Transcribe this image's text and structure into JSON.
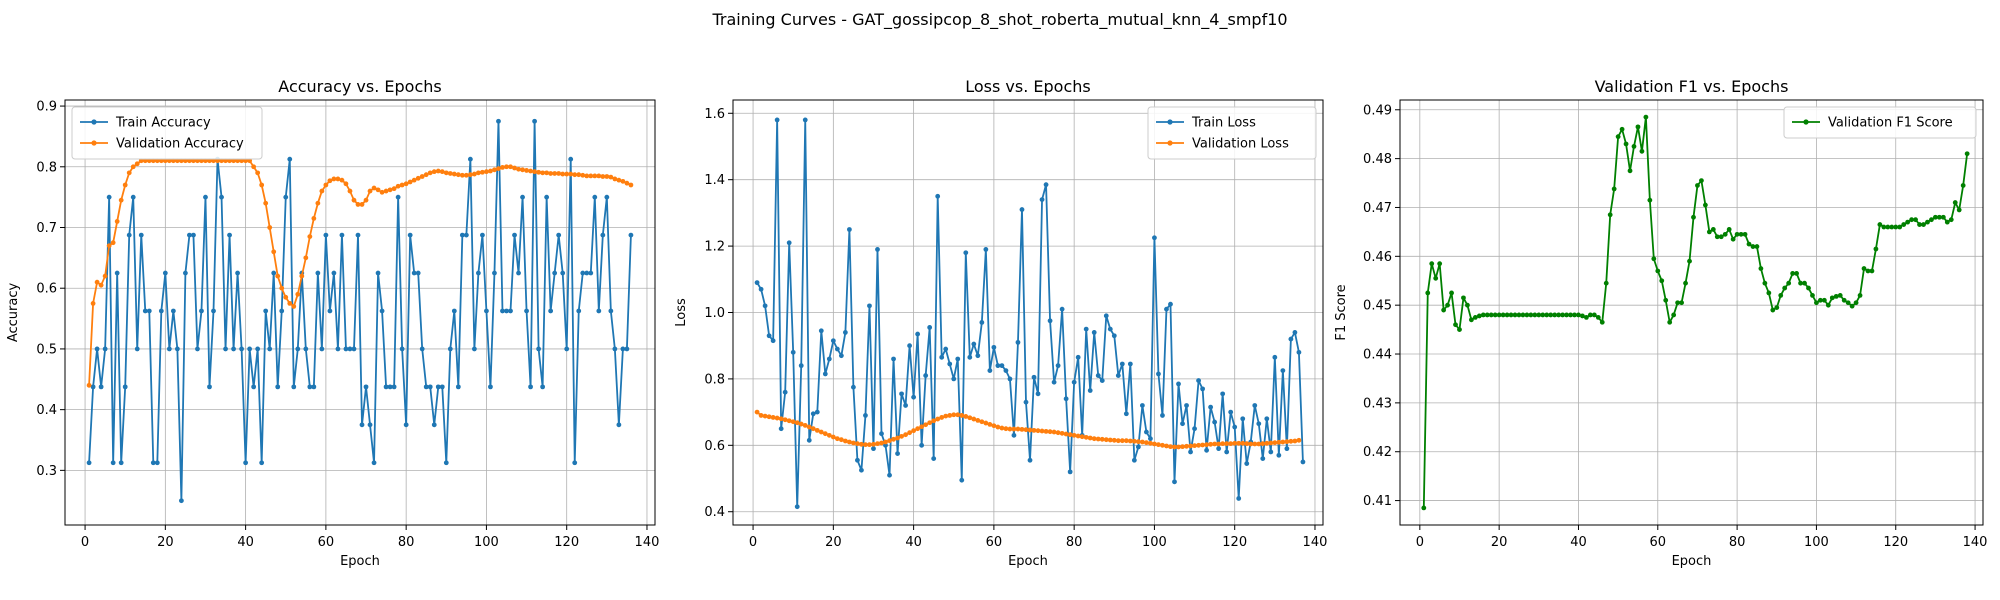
{
  "figure": {
    "title": "Training Curves - GAT_gossipcop_8_shot_roberta_mutual_knn_4_smpf10"
  },
  "colors": {
    "train": "#1f77b4",
    "val": "#ff7f0e",
    "f1": "#008000",
    "grid": "#b0b0b0"
  },
  "chart_data": [
    {
      "type": "line",
      "title": "Accuracy vs. Epochs",
      "xlabel": "Epoch",
      "ylabel": "Accuracy",
      "xlim": [
        -5,
        142
      ],
      "ylim": [
        0.21,
        0.91
      ],
      "xticks": [
        0,
        20,
        40,
        60,
        80,
        100,
        120,
        140
      ],
      "yticks": [
        0.3,
        0.4,
        0.5,
        0.6,
        0.7,
        0.8,
        0.9
      ],
      "ytick_labels": [
        "0.3",
        "0.4",
        "0.5",
        "0.6",
        "0.7",
        "0.8",
        "0.9"
      ],
      "grid": true,
      "legend": "upper left",
      "series": [
        {
          "name": "Train Accuracy",
          "color": "#1f77b4",
          "values": [
            0.3125,
            0.4375,
            0.5,
            0.4375,
            0.5,
            0.75,
            0.3125,
            0.625,
            0.3125,
            0.4375,
            0.6875,
            0.75,
            0.5,
            0.6875,
            0.5625,
            0.5625,
            0.3125,
            0.3125,
            0.5625,
            0.625,
            0.5,
            0.5625,
            0.5,
            0.25,
            0.625,
            0.6875,
            0.6875,
            0.5,
            0.5625,
            0.75,
            0.4375,
            0.5625,
            0.8125,
            0.75,
            0.5,
            0.6875,
            0.5,
            0.625,
            0.5,
            0.3125,
            0.5,
            0.4375,
            0.5,
            0.3125,
            0.5625,
            0.5,
            0.625,
            0.4375,
            0.5625,
            0.75,
            0.8125,
            0.4375,
            0.5,
            0.625,
            0.5,
            0.4375,
            0.4375,
            0.625,
            0.5,
            0.6875,
            0.5625,
            0.625,
            0.5,
            0.6875,
            0.5,
            0.5,
            0.5,
            0.6875,
            0.375,
            0.4375,
            0.375,
            0.3125,
            0.625,
            0.5625,
            0.4375,
            0.4375,
            0.4375,
            0.75,
            0.5,
            0.375,
            0.6875,
            0.625,
            0.625,
            0.5,
            0.4375,
            0.4375,
            0.375,
            0.4375,
            0.4375,
            0.3125,
            0.5,
            0.5625,
            0.4375,
            0.6875,
            0.6875,
            0.8125,
            0.5,
            0.625,
            0.6875,
            0.5625,
            0.4375,
            0.625,
            0.875,
            0.5625,
            0.5625,
            0.5625,
            0.6875,
            0.625,
            0.75,
            0.5625,
            0.4375,
            0.875,
            0.5,
            0.4375,
            0.75,
            0.5625,
            0.625,
            0.6875,
            0.625,
            0.5,
            0.8125,
            0.3125,
            0.5625,
            0.625,
            0.625,
            0.625,
            0.75,
            0.5625,
            0.6875,
            0.75,
            0.5625,
            0.5,
            0.375,
            0.5,
            0.5,
            0.6875
          ]
        },
        {
          "name": "Validation Accuracy",
          "color": "#ff7f0e",
          "values": [
            0.44,
            0.575,
            0.61,
            0.605,
            0.62,
            0.67,
            0.675,
            0.71,
            0.745,
            0.77,
            0.79,
            0.8,
            0.805,
            0.81,
            0.81,
            0.81,
            0.81,
            0.81,
            0.81,
            0.81,
            0.81,
            0.81,
            0.81,
            0.81,
            0.81,
            0.81,
            0.81,
            0.81,
            0.81,
            0.81,
            0.81,
            0.81,
            0.81,
            0.81,
            0.81,
            0.81,
            0.81,
            0.81,
            0.81,
            0.81,
            0.81,
            0.8,
            0.79,
            0.77,
            0.74,
            0.7,
            0.66,
            0.62,
            0.6,
            0.585,
            0.575,
            0.57,
            0.59,
            0.62,
            0.65,
            0.685,
            0.715,
            0.74,
            0.76,
            0.77,
            0.777,
            0.78,
            0.78,
            0.778,
            0.772,
            0.76,
            0.745,
            0.738,
            0.738,
            0.745,
            0.76,
            0.765,
            0.762,
            0.758,
            0.76,
            0.762,
            0.764,
            0.768,
            0.77,
            0.772,
            0.775,
            0.778,
            0.781,
            0.784,
            0.787,
            0.79,
            0.792,
            0.793,
            0.792,
            0.79,
            0.789,
            0.788,
            0.787,
            0.786,
            0.786,
            0.787,
            0.788,
            0.79,
            0.791,
            0.792,
            0.793,
            0.795,
            0.797,
            0.799,
            0.8,
            0.8,
            0.798,
            0.796,
            0.795,
            0.794,
            0.793,
            0.792,
            0.791,
            0.79,
            0.79,
            0.789,
            0.789,
            0.789,
            0.788,
            0.788,
            0.788,
            0.787,
            0.787,
            0.786,
            0.785,
            0.785,
            0.785,
            0.785,
            0.784,
            0.784,
            0.783,
            0.78,
            0.778,
            0.776,
            0.773,
            0.77
          ]
        }
      ]
    },
    {
      "type": "line",
      "title": "Loss vs. Epochs",
      "xlabel": "Epoch",
      "ylabel": "Loss",
      "xlim": [
        -5,
        142
      ],
      "ylim": [
        0.36,
        1.64
      ],
      "xticks": [
        0,
        20,
        40,
        60,
        80,
        100,
        120,
        140
      ],
      "yticks": [
        0.4,
        0.6,
        0.8,
        1.0,
        1.2,
        1.4,
        1.6
      ],
      "ytick_labels": [
        "0.4",
        "0.6",
        "0.8",
        "1.0",
        "1.2",
        "1.4",
        "1.6"
      ],
      "grid": true,
      "legend": "upper right",
      "series": [
        {
          "name": "Train Loss",
          "color": "#1f77b4",
          "values": [
            1.09,
            1.07,
            1.02,
            0.93,
            0.915,
            1.58,
            0.65,
            0.76,
            1.21,
            0.88,
            0.415,
            0.84,
            1.58,
            0.615,
            0.695,
            0.7,
            0.945,
            0.815,
            0.86,
            0.915,
            0.89,
            0.87,
            0.94,
            1.25,
            0.775,
            0.555,
            0.525,
            0.69,
            1.02,
            0.59,
            1.19,
            0.635,
            0.6,
            0.51,
            0.86,
            0.575,
            0.755,
            0.72,
            0.9,
            0.745,
            0.935,
            0.6,
            0.81,
            0.955,
            0.56,
            1.35,
            0.865,
            0.89,
            0.845,
            0.8,
            0.86,
            0.495,
            1.18,
            0.865,
            0.905,
            0.87,
            0.97,
            1.19,
            0.825,
            0.895,
            0.84,
            0.84,
            0.825,
            0.8,
            0.63,
            0.91,
            1.31,
            0.73,
            0.555,
            0.805,
            0.755,
            1.34,
            1.385,
            0.975,
            0.79,
            0.84,
            1.01,
            0.74,
            0.52,
            0.79,
            0.865,
            0.63,
            0.95,
            0.765,
            0.94,
            0.81,
            0.795,
            0.99,
            0.95,
            0.93,
            0.81,
            0.845,
            0.695,
            0.845,
            0.555,
            0.595,
            0.72,
            0.64,
            0.62,
            1.225,
            0.815,
            0.69,
            1.01,
            1.025,
            0.49,
            0.785,
            0.665,
            0.72,
            0.58,
            0.65,
            0.795,
            0.77,
            0.585,
            0.715,
            0.67,
            0.59,
            0.755,
            0.58,
            0.7,
            0.655,
            0.44,
            0.68,
            0.545,
            0.61,
            0.72,
            0.665,
            0.56,
            0.68,
            0.58,
            0.865,
            0.57,
            0.825,
            0.59,
            0.92,
            0.94,
            0.88,
            0.55
          ]
        },
        {
          "name": "Validation Loss",
          "color": "#ff7f0e",
          "values": [
            0.7,
            0.69,
            0.688,
            0.686,
            0.684,
            0.682,
            0.68,
            0.677,
            0.674,
            0.671,
            0.668,
            0.664,
            0.66,
            0.655,
            0.65,
            0.645,
            0.64,
            0.635,
            0.63,
            0.625,
            0.62,
            0.617,
            0.613,
            0.61,
            0.607,
            0.605,
            0.603,
            0.602,
            0.602,
            0.603,
            0.605,
            0.607,
            0.61,
            0.614,
            0.618,
            0.622,
            0.627,
            0.632,
            0.638,
            0.644,
            0.65,
            0.656,
            0.662,
            0.668,
            0.674,
            0.679,
            0.684,
            0.688,
            0.69,
            0.692,
            0.692,
            0.69,
            0.687,
            0.683,
            0.679,
            0.675,
            0.671,
            0.667,
            0.663,
            0.659,
            0.655,
            0.652,
            0.65,
            0.649,
            0.649,
            0.649,
            0.648,
            0.647,
            0.646,
            0.645,
            0.644,
            0.643,
            0.642,
            0.641,
            0.64,
            0.638,
            0.636,
            0.634,
            0.632,
            0.63,
            0.628,
            0.626,
            0.624,
            0.622,
            0.62,
            0.619,
            0.618,
            0.617,
            0.616,
            0.615,
            0.614,
            0.614,
            0.614,
            0.613,
            0.612,
            0.611,
            0.61,
            0.608,
            0.606,
            0.604,
            0.602,
            0.6,
            0.598,
            0.596,
            0.595,
            0.595,
            0.596,
            0.597,
            0.598,
            0.599,
            0.6,
            0.601,
            0.602,
            0.603,
            0.604,
            0.604,
            0.605,
            0.605,
            0.605,
            0.606,
            0.606,
            0.606,
            0.605,
            0.604,
            0.604,
            0.604,
            0.605,
            0.606,
            0.607,
            0.608,
            0.609,
            0.61,
            0.611,
            0.612,
            0.613,
            0.615
          ]
        }
      ]
    },
    {
      "type": "line",
      "title": "Validation F1 vs. Epochs",
      "xlabel": "Epoch",
      "ylabel": "F1 Score",
      "xlim": [
        -5,
        142
      ],
      "ylim": [
        0.405,
        0.492
      ],
      "xticks": [
        0,
        20,
        40,
        60,
        80,
        100,
        120,
        140
      ],
      "yticks": [
        0.41,
        0.42,
        0.43,
        0.44,
        0.45,
        0.46,
        0.47,
        0.48,
        0.49
      ],
      "ytick_labels": [
        "0.41",
        "0.42",
        "0.43",
        "0.44",
        "0.45",
        "0.46",
        "0.47",
        "0.48",
        "0.49"
      ],
      "grid": true,
      "legend": "upper right",
      "series": [
        {
          "name": "Validation F1 Score",
          "color": "#008000",
          "values": [
            0.4085,
            0.4525,
            0.4585,
            0.4555,
            0.4585,
            0.449,
            0.45,
            0.4525,
            0.446,
            0.445,
            0.4515,
            0.45,
            0.447,
            0.4475,
            0.4478,
            0.448,
            0.448,
            0.448,
            0.448,
            0.448,
            0.448,
            0.448,
            0.448,
            0.448,
            0.448,
            0.448,
            0.448,
            0.448,
            0.448,
            0.448,
            0.448,
            0.448,
            0.448,
            0.448,
            0.448,
            0.448,
            0.448,
            0.448,
            0.448,
            0.448,
            0.4478,
            0.4475,
            0.448,
            0.448,
            0.4475,
            0.4465,
            0.4545,
            0.4685,
            0.4738,
            0.4845,
            0.486,
            0.483,
            0.4775,
            0.4825,
            0.4865,
            0.4815,
            0.4885,
            0.4715,
            0.4595,
            0.457,
            0.455,
            0.451,
            0.4465,
            0.448,
            0.4505,
            0.4505,
            0.4545,
            0.459,
            0.468,
            0.4745,
            0.4755,
            0.4705,
            0.465,
            0.4655,
            0.464,
            0.464,
            0.4645,
            0.4655,
            0.4635,
            0.4645,
            0.4645,
            0.4645,
            0.4625,
            0.462,
            0.462,
            0.4575,
            0.4545,
            0.4525,
            0.449,
            0.4495,
            0.452,
            0.4535,
            0.4545,
            0.4565,
            0.4565,
            0.4545,
            0.4545,
            0.4535,
            0.452,
            0.4505,
            0.451,
            0.451,
            0.45,
            0.4515,
            0.4518,
            0.452,
            0.451,
            0.4505,
            0.4498,
            0.4505,
            0.452,
            0.4575,
            0.457,
            0.457,
            0.4615,
            0.4665,
            0.466,
            0.466,
            0.466,
            0.466,
            0.466,
            0.4665,
            0.467,
            0.4675,
            0.4675,
            0.4665,
            0.4665,
            0.467,
            0.4675,
            0.468,
            0.468,
            0.468,
            0.467,
            0.4675,
            0.471,
            0.4695,
            0.4745,
            0.481
          ]
        }
      ]
    }
  ]
}
